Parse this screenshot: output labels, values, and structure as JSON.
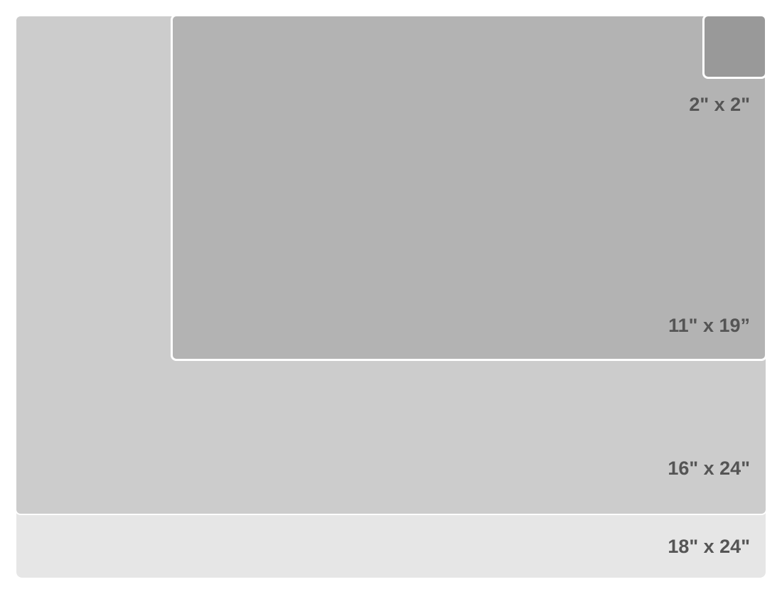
{
  "sizes": [
    {
      "label": "18\" x 24\"",
      "color": "#e6e6e6"
    },
    {
      "label": "16\" x 24\"",
      "color": "#cccccc"
    },
    {
      "label": "11\" x 19”",
      "color": "#b3b3b3"
    },
    {
      "label": "2\" x 2\"",
      "color": "#999999"
    }
  ]
}
